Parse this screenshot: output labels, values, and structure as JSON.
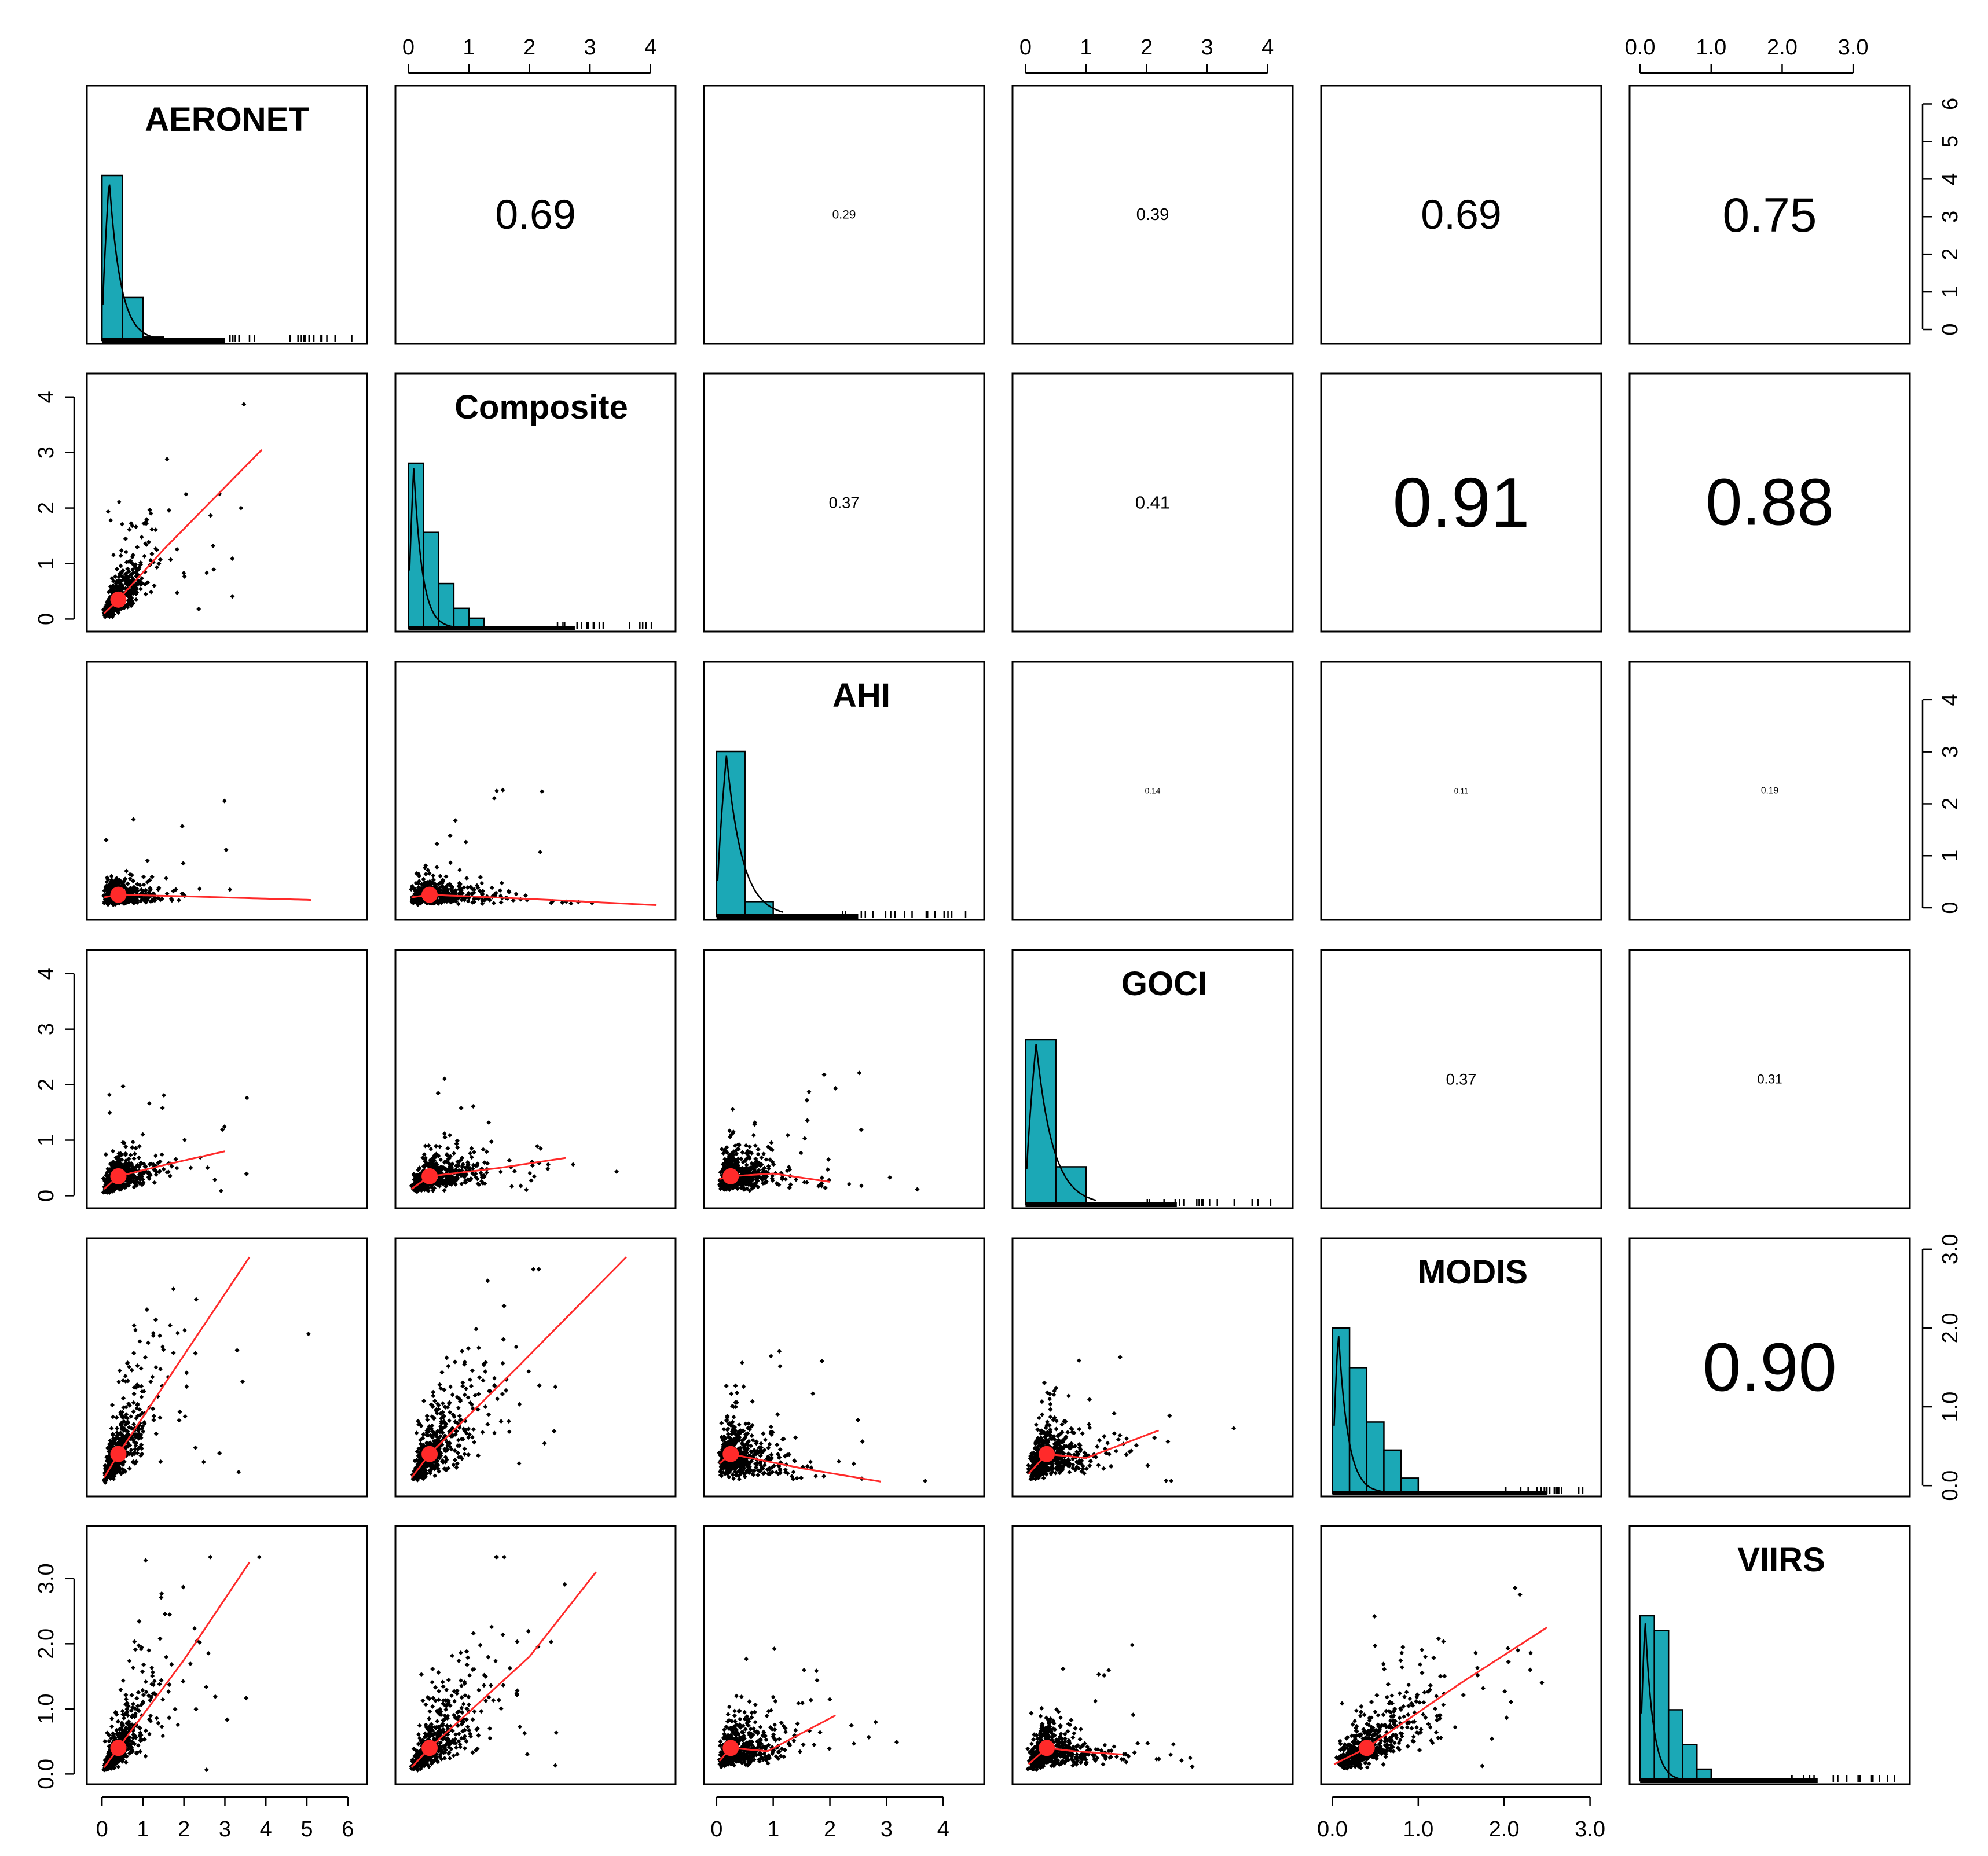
{
  "chart_data": {
    "type": "scatter",
    "title": "",
    "description_type": "scatterplot-matrix",
    "variables": [
      "AERONET",
      "Composite",
      "AHI",
      "GOCI",
      "MODIS",
      "VIIRS"
    ],
    "correlations": [
      {
        "row": 0,
        "col": 1,
        "r": 0.69,
        "label": "0.69"
      },
      {
        "row": 0,
        "col": 2,
        "r": 0.29,
        "label": "0.29"
      },
      {
        "row": 0,
        "col": 3,
        "r": 0.39,
        "label": "0.39"
      },
      {
        "row": 0,
        "col": 4,
        "r": 0.69,
        "label": "0.69"
      },
      {
        "row": 0,
        "col": 5,
        "r": 0.75,
        "label": "0.75"
      },
      {
        "row": 1,
        "col": 2,
        "r": 0.37,
        "label": "0.37"
      },
      {
        "row": 1,
        "col": 3,
        "r": 0.41,
        "label": "0.41"
      },
      {
        "row": 1,
        "col": 4,
        "r": 0.91,
        "label": "0.91"
      },
      {
        "row": 1,
        "col": 5,
        "r": 0.88,
        "label": "0.88"
      },
      {
        "row": 2,
        "col": 3,
        "r": 0.14,
        "label": "0.14"
      },
      {
        "row": 2,
        "col": 4,
        "r": 0.11,
        "label": "0.11"
      },
      {
        "row": 2,
        "col": 5,
        "r": 0.19,
        "label": "0.19"
      },
      {
        "row": 3,
        "col": 4,
        "r": 0.37,
        "label": "0.37"
      },
      {
        "row": 3,
        "col": 5,
        "r": 0.31,
        "label": "0.31"
      },
      {
        "row": 4,
        "col": 5,
        "r": 0.9,
        "label": "0.90"
      }
    ],
    "axes": {
      "top": [
        {
          "col": 1,
          "ticks": [
            "0",
            "1",
            "2",
            "3",
            "4"
          ],
          "values": [
            0,
            1,
            2,
            3,
            4
          ],
          "range": [
            -0.1,
            4.3
          ]
        },
        {
          "col": 3,
          "ticks": [
            "0",
            "1",
            "2",
            "3",
            "4"
          ],
          "values": [
            0,
            1,
            2,
            3,
            4
          ],
          "range": [
            -0.1,
            4.3
          ]
        },
        {
          "col": 5,
          "ticks": [
            "0.0",
            "1.0",
            "2.0",
            "3.0"
          ],
          "values": [
            0,
            1,
            2,
            3
          ],
          "range": [
            -0.05,
            3.7
          ]
        }
      ],
      "bottom": [
        {
          "col": 0,
          "ticks": [
            "0",
            "1",
            "2",
            "3",
            "4",
            "5",
            "6"
          ],
          "values": [
            0,
            1,
            2,
            3,
            4,
            5,
            6
          ],
          "range": [
            -0.2,
            6.3
          ]
        },
        {
          "col": 2,
          "ticks": [
            "0",
            "1",
            "2",
            "3",
            "4"
          ],
          "values": [
            0,
            1,
            2,
            3,
            4
          ],
          "range": [
            -0.1,
            4.6
          ]
        },
        {
          "col": 4,
          "ticks": [
            "0.0",
            "1.0",
            "2.0",
            "3.0"
          ],
          "values": [
            0,
            1,
            2,
            3
          ],
          "range": [
            -0.05,
            3.05
          ]
        }
      ],
      "left": [
        {
          "row": 1,
          "ticks": [
            "0",
            "1",
            "2",
            "3",
            "4"
          ],
          "values": [
            0,
            1,
            2,
            3,
            4
          ],
          "range": [
            -0.1,
            4.3
          ]
        },
        {
          "row": 3,
          "ticks": [
            "0",
            "1",
            "2",
            "3",
            "4"
          ],
          "values": [
            0,
            1,
            2,
            3,
            4
          ],
          "range": [
            -0.1,
            4.3
          ]
        },
        {
          "row": 5,
          "ticks": [
            "0.0",
            "1.0",
            "2.0",
            "3.0"
          ],
          "values": [
            0,
            1,
            2,
            3
          ],
          "range": [
            -0.05,
            3.7
          ]
        }
      ],
      "right": [
        {
          "row": 0,
          "ticks": [
            "0",
            "1",
            "2",
            "3",
            "4",
            "5",
            "6"
          ],
          "values": [
            0,
            1,
            2,
            3,
            4,
            5,
            6
          ],
          "range": [
            -0.2,
            6.3
          ]
        },
        {
          "row": 2,
          "ticks": [
            "0",
            "1",
            "2",
            "3",
            "4"
          ],
          "values": [
            0,
            1,
            2,
            3,
            4
          ],
          "range": [
            -0.1,
            4.6
          ]
        },
        {
          "row": 4,
          "ticks": [
            "0.0",
            "1.0",
            "2.0",
            "3.0"
          ],
          "values": [
            0,
            1,
            2,
            3
          ],
          "range": [
            -0.05,
            3.05
          ]
        }
      ]
    },
    "histograms": [
      {
        "var": "AERONET",
        "bin_edges": [
          0,
          0.5,
          1.0,
          1.5
        ],
        "relative_heights": [
          1.0,
          0.26,
          0.02
        ]
      },
      {
        "var": "Composite",
        "bin_edges": [
          0,
          0.25,
          0.5,
          0.75,
          1.0,
          1.25
        ],
        "relative_heights": [
          1.0,
          0.58,
          0.27,
          0.12,
          0.06
        ]
      },
      {
        "var": "AHI",
        "bin_edges": [
          0,
          0.5,
          1.0
        ],
        "relative_heights": [
          1.0,
          0.09
        ]
      },
      {
        "var": "GOCI",
        "bin_edges": [
          0,
          0.5,
          1.0
        ],
        "relative_heights": [
          1.0,
          0.23
        ]
      },
      {
        "var": "MODIS",
        "bin_edges": [
          0,
          0.2,
          0.4,
          0.6,
          0.8,
          1.0
        ],
        "relative_heights": [
          1.0,
          0.76,
          0.43,
          0.26,
          0.09
        ]
      },
      {
        "var": "VIIRS",
        "bin_edges": [
          0,
          0.2,
          0.4,
          0.6,
          0.8,
          1.0
        ],
        "relative_heights": [
          1.0,
          0.91,
          0.43,
          0.22,
          0.07
        ]
      }
    ],
    "centroids": [
      {
        "row": 1,
        "col": 0,
        "x": 0.4,
        "y": 0.35
      },
      {
        "row": 2,
        "col": 0,
        "x": 0.4,
        "y": 0.25
      },
      {
        "row": 2,
        "col": 1,
        "x": 0.35,
        "y": 0.25
      },
      {
        "row": 3,
        "col": 0,
        "x": 0.4,
        "y": 0.35
      },
      {
        "row": 3,
        "col": 1,
        "x": 0.35,
        "y": 0.35
      },
      {
        "row": 3,
        "col": 2,
        "x": 0.25,
        "y": 0.35
      },
      {
        "row": 4,
        "col": 0,
        "x": 0.4,
        "y": 0.4
      },
      {
        "row": 4,
        "col": 1,
        "x": 0.35,
        "y": 0.4
      },
      {
        "row": 4,
        "col": 2,
        "x": 0.25,
        "y": 0.4
      },
      {
        "row": 4,
        "col": 3,
        "x": 0.35,
        "y": 0.4
      },
      {
        "row": 5,
        "col": 0,
        "x": 0.4,
        "y": 0.4
      },
      {
        "row": 5,
        "col": 1,
        "x": 0.35,
        "y": 0.4
      },
      {
        "row": 5,
        "col": 2,
        "x": 0.25,
        "y": 0.4
      },
      {
        "row": 5,
        "col": 3,
        "x": 0.35,
        "y": 0.4
      },
      {
        "row": 5,
        "col": 4,
        "x": 0.4,
        "y": 0.4
      }
    ],
    "fit_lines": [
      {
        "row": 1,
        "col": 0,
        "points": [
          [
            0.05,
            0.1
          ],
          [
            0.4,
            0.35
          ],
          [
            1.5,
            1.25
          ],
          [
            3.9,
            3.05
          ]
        ]
      },
      {
        "row": 2,
        "col": 0,
        "points": [
          [
            0.05,
            0.2
          ],
          [
            0.4,
            0.25
          ],
          [
            2.0,
            0.22
          ],
          [
            5.1,
            0.15
          ]
        ]
      },
      {
        "row": 2,
        "col": 1,
        "points": [
          [
            0.05,
            0.2
          ],
          [
            0.35,
            0.25
          ],
          [
            2.0,
            0.17
          ],
          [
            4.1,
            0.05
          ]
        ]
      },
      {
        "row": 3,
        "col": 0,
        "points": [
          [
            0.05,
            0.12
          ],
          [
            0.4,
            0.35
          ],
          [
            1.5,
            0.55
          ],
          [
            3.0,
            0.8
          ]
        ]
      },
      {
        "row": 3,
        "col": 1,
        "points": [
          [
            0.05,
            0.12
          ],
          [
            0.35,
            0.35
          ],
          [
            1.5,
            0.5
          ],
          [
            2.6,
            0.68
          ]
        ]
      },
      {
        "row": 3,
        "col": 2,
        "points": [
          [
            0.05,
            0.3
          ],
          [
            0.25,
            0.35
          ],
          [
            1.0,
            0.4
          ],
          [
            2.0,
            0.25
          ]
        ]
      },
      {
        "row": 4,
        "col": 0,
        "points": [
          [
            0.05,
            0.1
          ],
          [
            0.4,
            0.4
          ],
          [
            1.8,
            1.5
          ],
          [
            3.6,
            2.9
          ]
        ]
      },
      {
        "row": 4,
        "col": 1,
        "points": [
          [
            0.05,
            0.1
          ],
          [
            0.35,
            0.4
          ],
          [
            1.8,
            1.5
          ],
          [
            3.6,
            2.9
          ]
        ]
      },
      {
        "row": 4,
        "col": 2,
        "points": [
          [
            0.05,
            0.28
          ],
          [
            0.25,
            0.4
          ],
          [
            1.5,
            0.22
          ],
          [
            2.9,
            0.05
          ]
        ]
      },
      {
        "row": 4,
        "col": 3,
        "points": [
          [
            0.05,
            0.15
          ],
          [
            0.35,
            0.4
          ],
          [
            1.0,
            0.35
          ],
          [
            2.2,
            0.7
          ]
        ]
      },
      {
        "row": 5,
        "col": 0,
        "points": [
          [
            0.05,
            0.1
          ],
          [
            0.4,
            0.4
          ],
          [
            2.0,
            1.75
          ],
          [
            3.6,
            3.25
          ]
        ]
      },
      {
        "row": 5,
        "col": 1,
        "points": [
          [
            0.05,
            0.1
          ],
          [
            0.35,
            0.4
          ],
          [
            2.0,
            1.8
          ],
          [
            3.1,
            3.1
          ]
        ]
      },
      {
        "row": 5,
        "col": 2,
        "points": [
          [
            0.05,
            0.2
          ],
          [
            0.25,
            0.4
          ],
          [
            0.9,
            0.35
          ],
          [
            2.1,
            0.9
          ]
        ]
      },
      {
        "row": 5,
        "col": 3,
        "points": [
          [
            0.05,
            0.15
          ],
          [
            0.35,
            0.4
          ],
          [
            0.8,
            0.35
          ],
          [
            1.6,
            0.3
          ]
        ]
      },
      {
        "row": 5,
        "col": 4,
        "points": [
          [
            0.02,
            0.15
          ],
          [
            0.4,
            0.4
          ],
          [
            1.5,
            1.4
          ],
          [
            2.5,
            2.25
          ]
        ]
      }
    ],
    "colors": {
      "histogram_fill": "#1ba8b6",
      "points": "#000000",
      "fit_line": "#ff2a2a",
      "frame": "#000000"
    }
  }
}
